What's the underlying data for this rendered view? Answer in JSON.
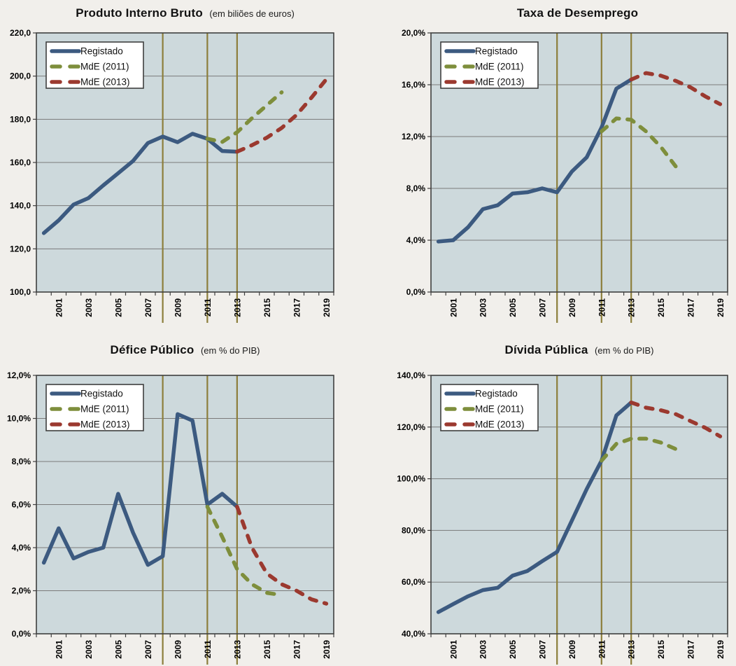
{
  "legend_labels": [
    "Registado",
    "MdE (2011)",
    "MdE (2013)"
  ],
  "series_order": [
    "registado",
    "mde2011",
    "mde2013"
  ],
  "x_tick_labels": [
    "2001",
    "2003",
    "2005",
    "2007",
    "2009",
    "2011",
    "2013",
    "2015",
    "2017",
    "2019"
  ],
  "event_years": [
    2008,
    2011,
    2013
  ],
  "colors": {
    "registado": "#3C5A80",
    "mde2011": "#7E8E3C",
    "mde2013": "#9B392F",
    "event_line": "#8C7E3B",
    "plot_bg": "#CDD9DC",
    "page_bg": "#F1EFEB",
    "grid": "#7A7A7A",
    "axis": "#3F3F3F",
    "text": "#000000",
    "legend_bg": "#FFFFFF",
    "legend_border": "#3F3F3F"
  },
  "chart_data": [
    {
      "type": "line",
      "title": "Produto Interno Bruto",
      "subtitle": "(em biliões de euros)",
      "x_start": 2000,
      "x_end": 2019,
      "ylim": [
        100,
        220
      ],
      "ytick_step": 20,
      "ytick_labels": [
        "100,0",
        "120,0",
        "140,0",
        "160,0",
        "180,0",
        "200,0",
        "220,0"
      ],
      "grid": true,
      "legend_position": "top-left",
      "series": {
        "registado": {
          "start": 2000,
          "values": [
            127.3,
            133.2,
            140.5,
            143.5,
            149.4,
            155.0,
            160.7,
            169.0,
            172.0,
            169.4,
            173.3,
            171.0,
            165.3,
            165.0
          ]
        },
        "mde2011": {
          "start": 2011,
          "values": [
            171.0,
            169.5,
            174.0,
            180.5,
            186.5,
            192.5
          ]
        },
        "mde2013": {
          "start": 2013,
          "values": [
            165.0,
            168.0,
            171.5,
            176.0,
            182.0,
            190.0,
            198.5
          ]
        }
      }
    },
    {
      "type": "line",
      "title": "Taxa de Desemprego",
      "subtitle": "",
      "x_start": 2000,
      "x_end": 2019,
      "ylim": [
        0,
        20
      ],
      "ytick_step": 4,
      "ytick_labels": [
        "0,0%",
        "4,0%",
        "8,0%",
        "12,0%",
        "16,0%",
        "20,0%"
      ],
      "grid": true,
      "legend_position": "top-left",
      "series": {
        "registado": {
          "start": 2000,
          "values": [
            3.9,
            4.0,
            5.0,
            6.4,
            6.7,
            7.6,
            7.7,
            8.0,
            7.7,
            9.3,
            10.4,
            12.7,
            15.7,
            16.4
          ]
        },
        "mde2011": {
          "start": 2011,
          "values": [
            12.4,
            13.4,
            13.3,
            12.4,
            11.2,
            9.7
          ]
        },
        "mde2013": {
          "start": 2013,
          "values": [
            16.4,
            16.9,
            16.7,
            16.3,
            15.8,
            15.1,
            14.5
          ]
        }
      }
    },
    {
      "type": "line",
      "title": "Défice Público",
      "subtitle": "(em % do PIB)",
      "x_start": 2000,
      "x_end": 2019,
      "ylim": [
        0,
        12
      ],
      "ytick_step": 2,
      "ytick_labels": [
        "0,0%",
        "2,0%",
        "4,0%",
        "6,0%",
        "8,0%",
        "10,0%",
        "12,0%"
      ],
      "grid": true,
      "legend_position": "top-left",
      "series": {
        "registado": {
          "start": 2000,
          "values": [
            3.3,
            4.9,
            3.5,
            3.8,
            4.0,
            6.5,
            4.7,
            3.2,
            3.6,
            10.2,
            9.9,
            6.0,
            6.5,
            5.9
          ]
        },
        "mde2011": {
          "start": 2011,
          "values": [
            5.9,
            4.5,
            3.0,
            2.3,
            1.9,
            1.8
          ]
        },
        "mde2013": {
          "start": 2013,
          "values": [
            5.9,
            4.0,
            2.8,
            2.3,
            2.0,
            1.6,
            1.4
          ]
        }
      }
    },
    {
      "type": "line",
      "title": "Dívida Pública",
      "subtitle": "(em % do PIB)",
      "x_start": 2000,
      "x_end": 2019,
      "ylim": [
        40,
        140
      ],
      "ytick_step": 20,
      "ytick_labels": [
        "40,0%",
        "60,0%",
        "80,0%",
        "100,0%",
        "120,0%",
        "140,0%"
      ],
      "grid": true,
      "legend_position": "top-left",
      "series": {
        "registado": {
          "start": 2000,
          "values": [
            48.4,
            51.5,
            54.5,
            56.9,
            57.8,
            62.5,
            64.3,
            68.1,
            71.7,
            83.8,
            96.0,
            107.0,
            124.5,
            129.5
          ]
        },
        "mde2011": {
          "start": 2011,
          "values": [
            107.0,
            113.5,
            115.5,
            115.5,
            114.0,
            111.5
          ]
        },
        "mde2013": {
          "start": 2013,
          "values": [
            129.5,
            127.5,
            126.5,
            125.0,
            122.3,
            119.7,
            116.4
          ]
        }
      }
    }
  ]
}
